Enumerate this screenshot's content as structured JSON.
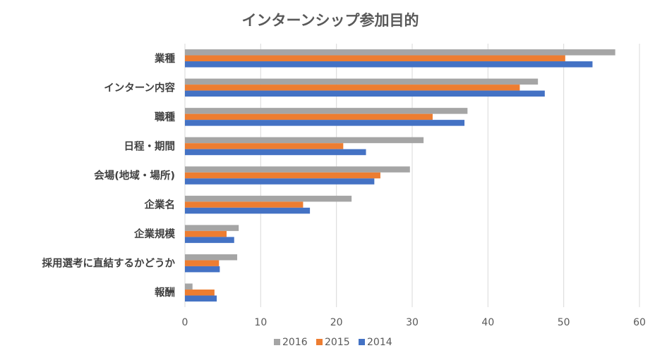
{
  "chart_data": {
    "type": "bar",
    "orientation": "horizontal",
    "title": "インターンシップ参加目的",
    "categories": [
      "業種",
      "インターン内容",
      "職種",
      "日程・期間",
      "会場(地域・場所)",
      "企業名",
      "企業規模",
      "採用選考に直結するかどうか",
      "報酬"
    ],
    "series": [
      {
        "name": "2016",
        "color": "#a5a5a5",
        "values": [
          56.8,
          46.6,
          37.3,
          31.5,
          29.7,
          22.0,
          7.1,
          6.9,
          1.0
        ]
      },
      {
        "name": "2015",
        "color": "#ed7d31",
        "values": [
          50.2,
          44.2,
          32.7,
          20.9,
          25.8,
          15.6,
          5.5,
          4.5,
          3.9
        ]
      },
      {
        "name": "2014",
        "color": "#4472c4",
        "values": [
          53.8,
          47.5,
          36.9,
          23.9,
          25.0,
          16.5,
          6.5,
          4.6,
          4.2
        ]
      }
    ],
    "xlim": [
      0,
      60
    ],
    "xticks": [
      0,
      10,
      20,
      30,
      40,
      50,
      60
    ],
    "xlabel": "",
    "ylabel": "",
    "grid": true,
    "legend": "bottom"
  }
}
